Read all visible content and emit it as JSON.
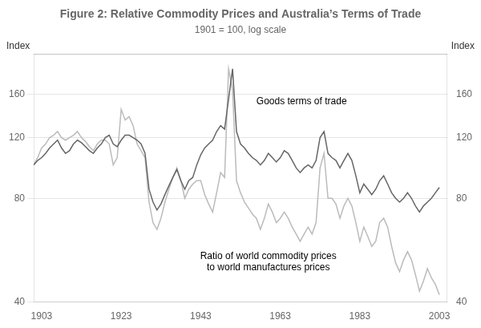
{
  "chart_data": {
    "type": "line",
    "title": "Figure 2: Relative Commodity Prices and Australia’s Terms of Trade",
    "subtitle": "1901 = 100, log scale",
    "ylabel": "Index",
    "y2label": "Index",
    "log": "y",
    "grid": "y",
    "xlim": [
      1901,
      2005
    ],
    "xticks": [
      1903,
      1923,
      1943,
      1963,
      1983,
      2003
    ],
    "ylim": [
      40,
      210
    ],
    "yticks": [
      40,
      80,
      120,
      160
    ],
    "y2lim": [
      40,
      210
    ],
    "y2ticks": [
      40,
      80,
      120,
      160
    ],
    "x": [
      1901,
      1902,
      1903,
      1904,
      1905,
      1906,
      1907,
      1908,
      1909,
      1910,
      1911,
      1912,
      1913,
      1914,
      1915,
      1916,
      1917,
      1918,
      1919,
      1920,
      1921,
      1922,
      1923,
      1924,
      1925,
      1926,
      1927,
      1928,
      1929,
      1930,
      1931,
      1932,
      1933,
      1934,
      1935,
      1936,
      1937,
      1938,
      1939,
      1940,
      1941,
      1942,
      1943,
      1944,
      1945,
      1946,
      1947,
      1948,
      1949,
      1950,
      1951,
      1952,
      1953,
      1954,
      1955,
      1956,
      1957,
      1958,
      1959,
      1960,
      1961,
      1962,
      1963,
      1964,
      1965,
      1966,
      1967,
      1968,
      1969,
      1970,
      1971,
      1972,
      1973,
      1974,
      1975,
      1976,
      1977,
      1978,
      1979,
      1980,
      1981,
      1982,
      1983,
      1984,
      1985,
      1986,
      1987,
      1988,
      1989,
      1990,
      1991,
      1992,
      1993,
      1994,
      1995,
      1996,
      1997,
      1998,
      1999,
      2000,
      2001,
      2002,
      2003
    ],
    "series": [
      {
        "color": "#666666",
        "values": [
          100,
          103,
          105,
          108,
          112,
          115,
          118,
          112,
          108,
          110,
          115,
          118,
          116,
          113,
          110,
          108,
          112,
          115,
          120,
          122,
          115,
          113,
          118,
          122,
          122,
          120,
          118,
          115,
          108,
          85,
          78,
          74,
          77,
          82,
          87,
          92,
          97,
          90,
          85,
          90,
          92,
          100,
          107,
          112,
          115,
          118,
          125,
          130,
          127,
          155,
          190,
          125,
          115,
          112,
          108,
          105,
          103,
          100,
          103,
          108,
          105,
          102,
          105,
          110,
          108,
          103,
          98,
          95,
          98,
          100,
          98,
          103,
          120,
          125,
          108,
          105,
          103,
          98,
          103,
          108,
          103,
          93,
          83,
          88,
          85,
          82,
          85,
          90,
          93,
          88,
          83,
          80,
          78,
          80,
          83,
          80,
          76,
          73,
          76,
          78,
          80,
          83,
          86
        ]
      },
      {
        "color": "#bbbbbb",
        "values": [
          100,
          105,
          112,
          115,
          120,
          122,
          125,
          120,
          118,
          120,
          122,
          125,
          120,
          117,
          113,
          110,
          115,
          118,
          118,
          115,
          100,
          105,
          145,
          135,
          138,
          130,
          115,
          110,
          105,
          78,
          68,
          65,
          70,
          78,
          85,
          92,
          98,
          90,
          80,
          85,
          88,
          90,
          90,
          82,
          77,
          73,
          83,
          95,
          92,
          190,
          165,
          90,
          83,
          78,
          75,
          72,
          70,
          65,
          70,
          77,
          73,
          68,
          70,
          73,
          70,
          66,
          63,
          60,
          63,
          66,
          63,
          68,
          98,
          108,
          80,
          80,
          77,
          70,
          76,
          80,
          76,
          68,
          60,
          66,
          62,
          58,
          60,
          68,
          70,
          66,
          58,
          52,
          49,
          53,
          56,
          53,
          48,
          43,
          46,
          50,
          47,
          45,
          42
        ]
      }
    ],
    "annotations": [
      {
        "text": "Goods terms of trade",
        "x": 1957,
        "y": 148
      },
      {
        "text": "Ratio of world commodity prices\nto world manufactures prices",
        "x": 1960,
        "y": 56
      }
    ]
  }
}
